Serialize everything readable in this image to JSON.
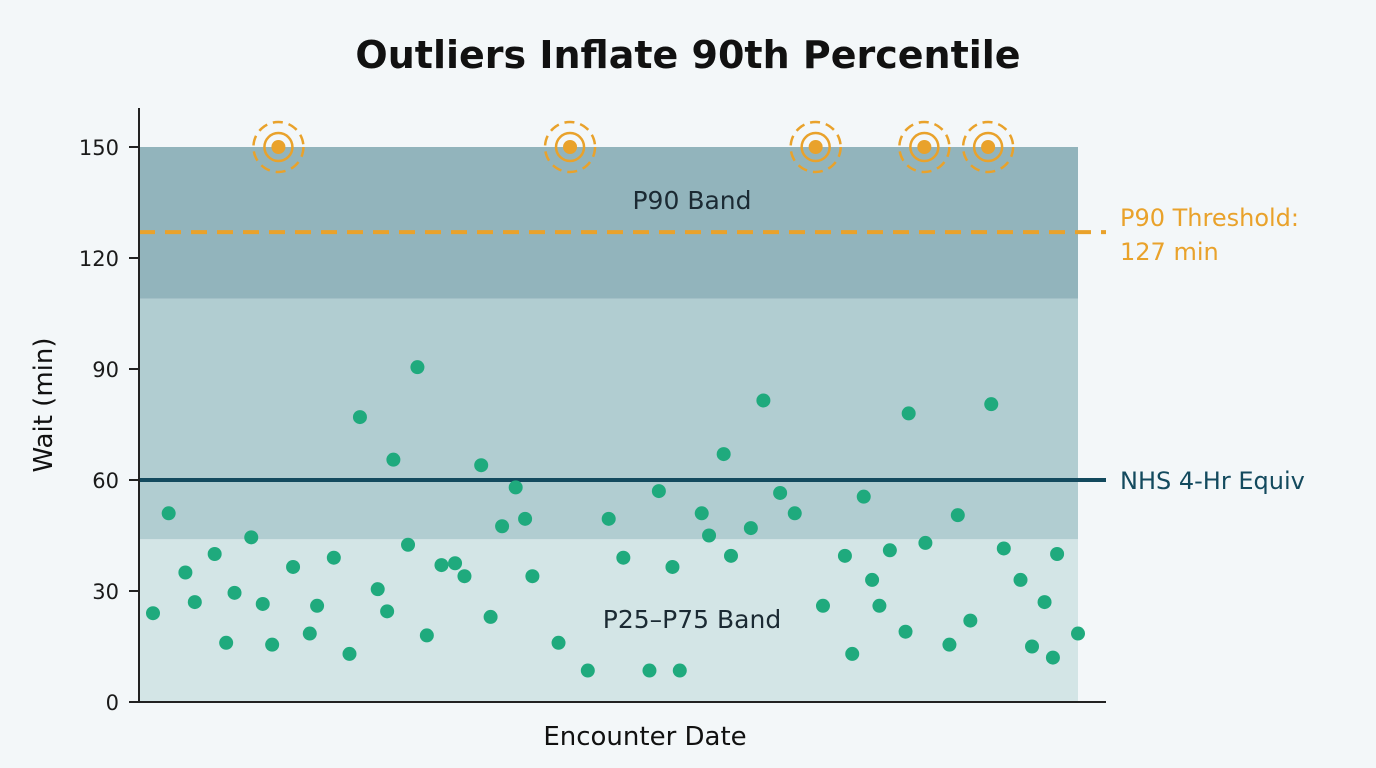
{
  "chart_data": {
    "type": "scatter",
    "title": "Outliers Inflate 90th Percentile",
    "xlabel": "Encounter Date",
    "ylabel": "Wait (min)",
    "ylim": [
      0,
      160
    ],
    "yticks": [
      0,
      30,
      60,
      90,
      120,
      150
    ],
    "grid": false,
    "colors": {
      "point": "#1faa7d",
      "outlier": "#e9a22b",
      "threshold": "#e9a22b",
      "reference": "#134a5e",
      "band_iqr": "#d3e5e6",
      "band_mid": "#b1cdd1",
      "band_p90": "#92b4bc",
      "background": "#f3f7f9"
    },
    "bands": [
      {
        "name": "P25–P75 Band",
        "from": 0,
        "to": 44
      },
      {
        "name": "",
        "from": 44,
        "to": 109
      },
      {
        "name": "P90 Band",
        "from": 109,
        "to": 150
      }
    ],
    "reference_lines": [
      {
        "label": "P90 Threshold:",
        "label2": "127 min",
        "y": 127,
        "style": "dashed",
        "color": "#e9a22b"
      },
      {
        "label": "NHS 4-Hr Equiv",
        "label2": "",
        "y": 60,
        "style": "solid",
        "color": "#134a5e"
      }
    ],
    "points": [
      [
        0.0,
        24
      ],
      [
        1.5,
        51
      ],
      [
        3.1,
        35
      ],
      [
        4.0,
        27
      ],
      [
        5.9,
        40
      ],
      [
        7.0,
        16
      ],
      [
        7.8,
        29.5
      ],
      [
        9.4,
        44.5
      ],
      [
        10.5,
        26.5
      ],
      [
        11.4,
        15.5
      ],
      [
        13.4,
        36.5
      ],
      [
        15.0,
        18.5
      ],
      [
        15.7,
        26
      ],
      [
        17.3,
        39
      ],
      [
        18.8,
        13
      ],
      [
        19.8,
        77
      ],
      [
        21.5,
        30.5
      ],
      [
        22.4,
        24.5
      ],
      [
        23.0,
        65.5
      ],
      [
        24.4,
        42.5
      ],
      [
        25.3,
        90.5
      ],
      [
        26.2,
        18
      ],
      [
        27.6,
        37
      ],
      [
        28.9,
        37.5
      ],
      [
        29.8,
        34
      ],
      [
        31.4,
        64
      ],
      [
        32.3,
        23
      ],
      [
        33.4,
        47.5
      ],
      [
        34.7,
        58
      ],
      [
        35.6,
        49.5
      ],
      [
        36.3,
        34
      ],
      [
        38.8,
        16
      ],
      [
        41.6,
        8.5
      ],
      [
        43.6,
        49.5
      ],
      [
        45.0,
        39
      ],
      [
        47.5,
        8.5
      ],
      [
        48.4,
        57
      ],
      [
        49.7,
        36.5
      ],
      [
        50.4,
        8.5
      ],
      [
        52.5,
        51
      ],
      [
        53.2,
        45
      ],
      [
        54.6,
        67
      ],
      [
        55.3,
        39.5
      ],
      [
        57.2,
        47
      ],
      [
        58.4,
        81.5
      ],
      [
        60.0,
        56.5
      ],
      [
        61.4,
        51
      ],
      [
        64.1,
        26
      ],
      [
        66.2,
        39.5
      ],
      [
        66.9,
        13
      ],
      [
        68.0,
        55.5
      ],
      [
        68.8,
        33
      ],
      [
        69.5,
        26
      ],
      [
        70.5,
        41
      ],
      [
        72.0,
        19
      ],
      [
        72.3,
        78
      ],
      [
        73.9,
        43
      ],
      [
        76.2,
        15.5
      ],
      [
        77.0,
        50.5
      ],
      [
        78.2,
        22
      ],
      [
        80.2,
        80.5
      ],
      [
        81.4,
        41.5
      ],
      [
        83.0,
        33
      ],
      [
        84.1,
        15
      ],
      [
        85.3,
        27
      ],
      [
        86.1,
        12
      ],
      [
        86.5,
        40
      ],
      [
        88.5,
        18.5
      ]
    ],
    "outliers": [
      [
        12.0,
        150
      ],
      [
        39.9,
        150
      ],
      [
        63.4,
        150
      ],
      [
        73.8,
        150
      ],
      [
        79.9,
        150
      ]
    ]
  }
}
